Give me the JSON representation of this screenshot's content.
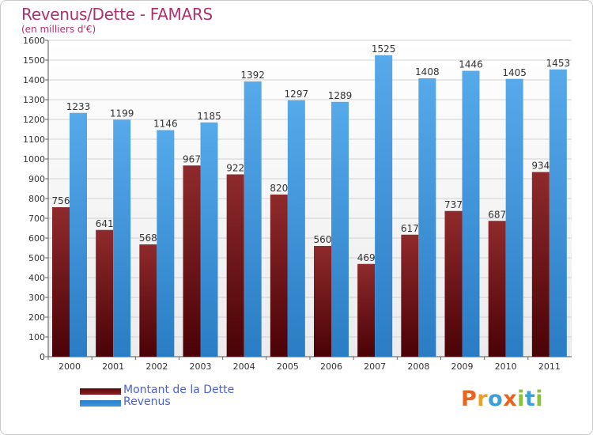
{
  "header": {
    "title": "Revenus/Dette - FAMARS",
    "subtitle": "(en milliers d'€)"
  },
  "colors": {
    "debt": "#8a1e22",
    "revenue": "#3d97de",
    "title": "#b0306e",
    "legend_text": "#4a5fd1"
  },
  "logo": {
    "text": "Proxiti",
    "letters": [
      {
        "ch": "P",
        "color": "#e8641f"
      },
      {
        "ch": "r",
        "color": "#f0a020"
      },
      {
        "ch": "o",
        "color": "#3aa0d8"
      },
      {
        "ch": "x",
        "color": "#e8641f"
      },
      {
        "ch": "i",
        "color": "#8ac23c"
      },
      {
        "ch": "t",
        "color": "#3aa0d8"
      },
      {
        "ch": "i",
        "color": "#8ac23c"
      }
    ]
  },
  "chart_data": {
    "type": "bar",
    "title": "Revenus/Dette - FAMARS",
    "subtitle": "(en milliers d'€)",
    "categories": [
      "2000",
      "2001",
      "2002",
      "2003",
      "2004",
      "2005",
      "2006",
      "2007",
      "2008",
      "2009",
      "2010",
      "2011"
    ],
    "series": [
      {
        "name": "Montant de la Dette",
        "values": [
          756,
          641,
          568,
          967,
          922,
          820,
          560,
          469,
          617,
          737,
          687,
          934
        ]
      },
      {
        "name": "Revenus",
        "values": [
          1233,
          1199,
          1146,
          1185,
          1392,
          1297,
          1289,
          1525,
          1408,
          1446,
          1405,
          1453
        ]
      }
    ],
    "yticks": [
      0,
      100,
      200,
      300,
      400,
      500,
      600,
      700,
      800,
      900,
      1000,
      1100,
      1200,
      1300,
      1400,
      1500,
      1600
    ],
    "ylim": [
      0,
      1600
    ],
    "grid": true,
    "legend": "bottom-left",
    "data_labels": true
  }
}
